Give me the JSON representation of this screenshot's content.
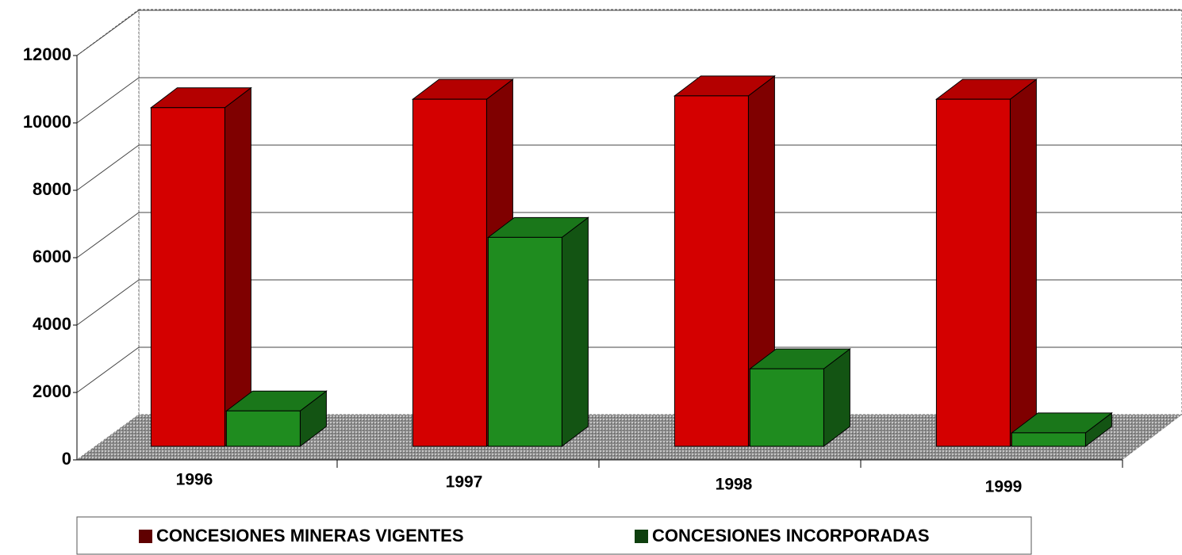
{
  "chart_data": {
    "type": "bar3d",
    "categories": [
      "1996",
      "1997",
      "1998",
      "1999"
    ],
    "series": [
      {
        "name": "CONCESIONES MINERAS VIGENTES",
        "color": "#d40000",
        "values": [
          10050,
          10300,
          10400,
          10300
        ]
      },
      {
        "name": "CONCESIONES INCORPORADAS",
        "color": "#1f8c1f",
        "values": [
          1050,
          6200,
          2300,
          400
        ]
      }
    ],
    "ylim": [
      0,
      12000
    ],
    "yticks": [
      0,
      2000,
      4000,
      6000,
      8000,
      10000,
      12000
    ],
    "grid": true
  }
}
